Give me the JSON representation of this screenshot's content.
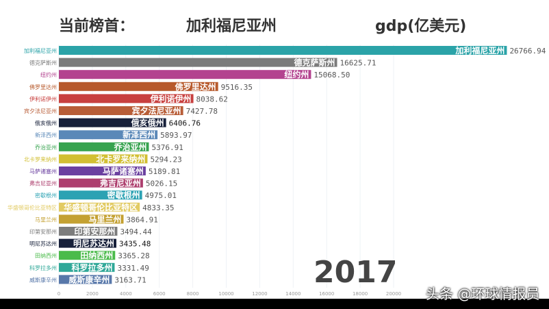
{
  "header": {
    "leader_label": "当前榜首：",
    "leader_name": "加利福尼亚州",
    "unit_label": "gdp(亿美元)"
  },
  "year": "2017",
  "watermark": "头条 @环球情报员",
  "chart_data": {
    "type": "bar",
    "orientation": "horizontal",
    "title": "",
    "xlim": [
      0,
      27000
    ],
    "xticks": [
      0,
      2000,
      4000,
      6000,
      8000,
      10000,
      12000,
      14000,
      16000,
      18000,
      20000
    ],
    "grid": true,
    "categories": [
      "加利福尼亚州",
      "德克萨斯州",
      "纽约州",
      "佛罗里达州",
      "伊利诺伊州",
      "宾夕法尼亚州",
      "俄亥俄州",
      "新泽西州",
      "乔治亚州",
      "北卡罗来纳州",
      "马萨诸塞州",
      "弗吉尼亚州",
      "密歇根州",
      "华盛顿哥伦比亚特区",
      "马里兰州",
      "印第安那州",
      "明尼苏达州",
      "田纳西州",
      "科罗拉多州",
      "威斯康辛州"
    ],
    "values": [
      26766.94,
      16625.71,
      15068.5,
      9516.35,
      8038.62,
      7427.78,
      6406.76,
      5893.97,
      5376.91,
      5294.23,
      5189.81,
      5026.15,
      4975.01,
      4833.35,
      3864.91,
      3494.44,
      3435.48,
      3365.28,
      3331.49,
      3163.71
    ],
    "value_labels": [
      "26766.94",
      "16625.71",
      "15068.50",
      "9516.35",
      "8038.62",
      "7427.78",
      "6406.76",
      "5893.97",
      "5376.91",
      "5294.23",
      "5189.81",
      "5026.15",
      "4975.01",
      "4833.35",
      "3864.91",
      "3494.44",
      "3435.48",
      "3365.28",
      "3331.49",
      "3163.71"
    ],
    "colors": [
      "#2ba3a8",
      "#7b7b7b",
      "#b3438f",
      "#b75a2c",
      "#c8403f",
      "#b85d37",
      "#17203a",
      "#5a88b8",
      "#37a34f",
      "#d2bf33",
      "#6b40a0",
      "#ad3f6e",
      "#2ca2b3",
      "#e2cb63",
      "#c4a132",
      "#7d7d7d",
      "#17203a",
      "#4bbb4b",
      "#2fa898",
      "#5878aa"
    ]
  }
}
